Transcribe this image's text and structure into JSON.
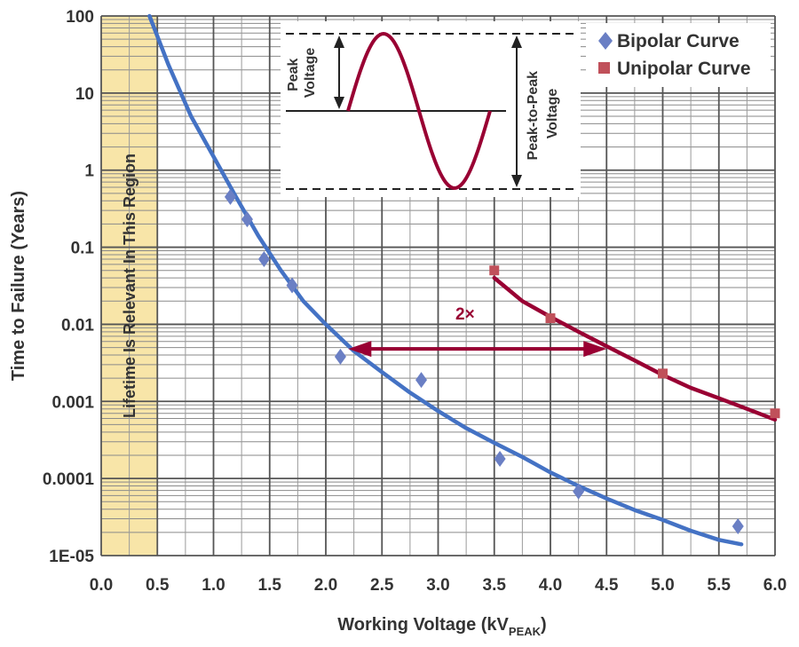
{
  "chart_data": {
    "type": "scatter",
    "xlabel_main": "Working Voltage (kV",
    "xlabel_sub": "PEAK",
    "xlabel_close": ")",
    "ylabel": "Time to Failure (Years)",
    "x_ticks": [
      "0.0",
      "0.5",
      "1.0",
      "1.5",
      "2.0",
      "2.5",
      "3.0",
      "3.5",
      "4.0",
      "4.5",
      "5.0",
      "5.5",
      "6.0"
    ],
    "y_ticks": [
      "100",
      "10",
      "1",
      "0.1",
      "0.01",
      "0.001",
      "0.0001",
      "1E-05"
    ],
    "xlim": [
      0,
      6
    ],
    "ylim": [
      1e-05,
      100
    ],
    "yscale": "log",
    "grid": true,
    "legend_position": "top-right",
    "shaded_region": {
      "x_range": [
        0,
        0.5
      ],
      "label": "Lifetime Is Relevant In This Region",
      "color": "#f8e5a8"
    },
    "series": [
      {
        "name": "Bipolar Curve",
        "marker": "diamond",
        "color": "#4472c4",
        "markerColor": "#6a7fc4",
        "points": [
          {
            "x": 1.15,
            "y": 0.45
          },
          {
            "x": 1.3,
            "y": 0.23
          },
          {
            "x": 1.45,
            "y": 0.07
          },
          {
            "x": 1.7,
            "y": 0.032
          },
          {
            "x": 2.13,
            "y": 0.0038
          },
          {
            "x": 2.85,
            "y": 0.0019
          },
          {
            "x": 3.55,
            "y": 0.00018
          },
          {
            "x": 4.25,
            "y": 6.8e-05
          },
          {
            "x": 5.67,
            "y": 2.4e-05
          }
        ],
        "fit": [
          {
            "x": 0.43,
            "y": 100
          },
          {
            "x": 0.6,
            "y": 23
          },
          {
            "x": 0.8,
            "y": 5
          },
          {
            "x": 1.0,
            "y": 1.5
          },
          {
            "x": 1.2,
            "y": 0.45
          },
          {
            "x": 1.4,
            "y": 0.14
          },
          {
            "x": 1.6,
            "y": 0.05
          },
          {
            "x": 1.8,
            "y": 0.02
          },
          {
            "x": 2.0,
            "y": 0.01
          },
          {
            "x": 2.25,
            "y": 0.0045
          },
          {
            "x": 2.5,
            "y": 0.0024
          },
          {
            "x": 2.75,
            "y": 0.0013
          },
          {
            "x": 3.0,
            "y": 0.00075
          },
          {
            "x": 3.25,
            "y": 0.00045
          },
          {
            "x": 3.5,
            "y": 0.00029
          },
          {
            "x": 3.75,
            "y": 0.00019
          },
          {
            "x": 4.0,
            "y": 0.00012
          },
          {
            "x": 4.25,
            "y": 8e-05
          },
          {
            "x": 4.5,
            "y": 5.5e-05
          },
          {
            "x": 4.75,
            "y": 3.9e-05
          },
          {
            "x": 5.0,
            "y": 2.9e-05
          },
          {
            "x": 5.25,
            "y": 2.1e-05
          },
          {
            "x": 5.5,
            "y": 1.6e-05
          },
          {
            "x": 5.7,
            "y": 1.4e-05
          }
        ]
      },
      {
        "name": "Unipolar Curve",
        "marker": "square",
        "color": "#990033",
        "markerColor": "#c0505a",
        "points": [
          {
            "x": 3.5,
            "y": 0.05
          },
          {
            "x": 4.0,
            "y": 0.012
          },
          {
            "x": 5.0,
            "y": 0.0023
          },
          {
            "x": 6.0,
            "y": 0.0007
          }
        ],
        "fit": [
          {
            "x": 3.5,
            "y": 0.04
          },
          {
            "x": 3.75,
            "y": 0.02
          },
          {
            "x": 4.0,
            "y": 0.0125
          },
          {
            "x": 4.25,
            "y": 0.008
          },
          {
            "x": 4.5,
            "y": 0.0052
          },
          {
            "x": 4.75,
            "y": 0.0034
          },
          {
            "x": 5.0,
            "y": 0.0022
          },
          {
            "x": 5.25,
            "y": 0.0015
          },
          {
            "x": 5.5,
            "y": 0.0011
          },
          {
            "x": 5.75,
            "y": 0.0008
          },
          {
            "x": 6.0,
            "y": 0.00058
          }
        ]
      }
    ],
    "annotations": {
      "ratio_label": "2×",
      "ratio_arrow": {
        "x_from": 2.2,
        "x_to": 4.5,
        "y": 0.0048
      },
      "inset_peak_label": [
        "Peak",
        "Voltage"
      ],
      "inset_p2p_label": [
        "Peak-to-Peak",
        "Voltage"
      ]
    }
  }
}
